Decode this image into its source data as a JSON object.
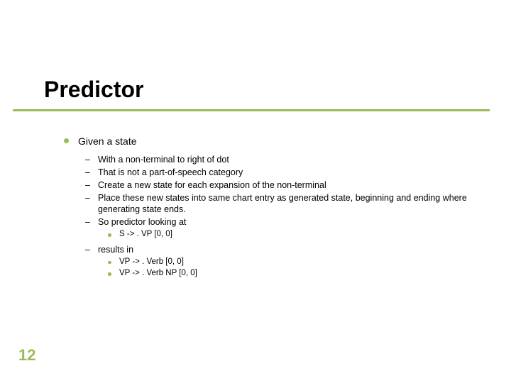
{
  "title": "Predictor",
  "pageNumber": "12",
  "colors": {
    "accent": "#9BBB59",
    "text": "#000000",
    "background": "#ffffff"
  },
  "content": {
    "l1": "Given a state",
    "l2_items": [
      "With a non-terminal to right of dot",
      "That is not a part-of-speech category",
      "Create a new state for each expansion of the non-terminal",
      "Place these new states into same chart entry as generated state, beginning and ending where generating state ends.",
      "So predictor looking at"
    ],
    "l3_a": [
      "S -> . VP [0, 0]"
    ],
    "l2_results": "results in",
    "l3_b": [
      "VP -> . Verb [0, 0]",
      "VP -> . Verb NP [0, 0]"
    ]
  },
  "typography": {
    "title_fontsize": 32,
    "l1_fontsize": 14,
    "l2_fontsize": 12.5,
    "l3_fontsize": 11.5
  }
}
